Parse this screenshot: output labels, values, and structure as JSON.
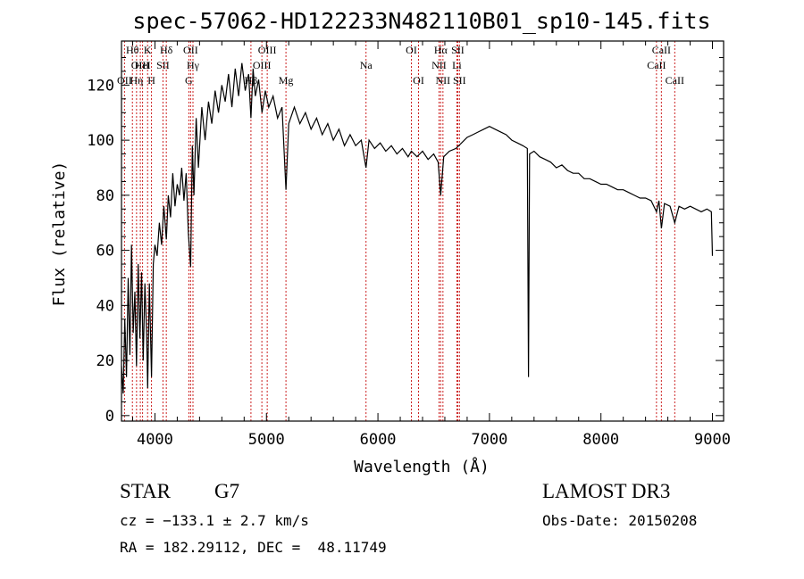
{
  "header": {
    "title": "spec-57062-HD122233N482110B01_sp10-145.fits"
  },
  "info": {
    "object_class": "STAR",
    "subclass": "G7",
    "survey": "LAMOST DR3",
    "cz": "cz = −133.1 ± 2.7 km/s",
    "obs_date": "Obs-Date: 20150208",
    "coords": "RA = 182.29112, DEC =  48.11749"
  },
  "chart_data": {
    "type": "line",
    "title": "spec-57062-HD122233N482110B01_sp10-145.fits",
    "xlabel": "Wavelength (Å)",
    "ylabel": "Flux (relative)",
    "xlim": [
      3700,
      9100
    ],
    "ylim": [
      -2,
      136
    ],
    "xticks": [
      4000,
      5000,
      6000,
      7000,
      8000,
      9000
    ],
    "yticks": [
      0,
      20,
      40,
      60,
      80,
      100,
      120
    ],
    "grid": false,
    "colors": {
      "spectrum": "#000000",
      "line_markers": "#cc2222"
    },
    "spectral_lines": [
      {
        "label": "OII",
        "x": 3727,
        "row": 2
      },
      {
        "label": "Hθ",
        "x": 3798,
        "row": 0
      },
      {
        "label": "OIII",
        "x": 3869,
        "row": 1
      },
      {
        "label": "Hη",
        "x": 3835,
        "row": 2
      },
      {
        "label": "K",
        "x": 3934,
        "row": 0
      },
      {
        "label": "HeI",
        "x": 3889,
        "row": 1
      },
      {
        "label": "H",
        "x": 3969,
        "row": 2
      },
      {
        "label": "Hδ",
        "x": 4102,
        "row": 0
      },
      {
        "label": "SII",
        "x": 4072,
        "row": 1
      },
      {
        "label": "OII",
        "x": 4320,
        "row": 0
      },
      {
        "label": "Hγ",
        "x": 4341,
        "row": 1
      },
      {
        "label": "G",
        "x": 4304,
        "row": 2
      },
      {
        "label": "Hβ",
        "x": 4861,
        "row": 2
      },
      {
        "label": "OIII",
        "x": 4959,
        "row": 1
      },
      {
        "label": "OIII",
        "x": 5007,
        "row": 0
      },
      {
        "label": "Mg",
        "x": 5175,
        "row": 2
      },
      {
        "label": "Na",
        "x": 5893,
        "row": 1
      },
      {
        "label": "OI",
        "x": 6300,
        "row": 0
      },
      {
        "label": "OI",
        "x": 6364,
        "row": 2
      },
      {
        "label": "Hα",
        "x": 6563,
        "row": 0
      },
      {
        "label": "NII",
        "x": 6548,
        "row": 1
      },
      {
        "label": "NII",
        "x": 6583,
        "row": 2
      },
      {
        "label": "SII",
        "x": 6716,
        "row": 0
      },
      {
        "label": "Li",
        "x": 6708,
        "row": 1
      },
      {
        "label": "SII",
        "x": 6731,
        "row": 2
      },
      {
        "label": "CaII",
        "x": 8542,
        "row": 0
      },
      {
        "label": "CaII",
        "x": 8498,
        "row": 1
      },
      {
        "label": "CaII",
        "x": 8662,
        "row": 2
      }
    ],
    "series": [
      {
        "values_xy": [
          [
            3700,
            18
          ],
          [
            3715,
            8
          ],
          [
            3730,
            35
          ],
          [
            3745,
            14
          ],
          [
            3760,
            50
          ],
          [
            3775,
            22
          ],
          [
            3790,
            62
          ],
          [
            3805,
            30
          ],
          [
            3820,
            45
          ],
          [
            3835,
            18
          ],
          [
            3850,
            55
          ],
          [
            3865,
            28
          ],
          [
            3880,
            52
          ],
          [
            3895,
            20
          ],
          [
            3910,
            48
          ],
          [
            3925,
            30
          ],
          [
            3935,
            10
          ],
          [
            3950,
            48
          ],
          [
            3969,
            14
          ],
          [
            3985,
            55
          ],
          [
            4000,
            62
          ],
          [
            4020,
            58
          ],
          [
            4040,
            70
          ],
          [
            4060,
            62
          ],
          [
            4080,
            76
          ],
          [
            4102,
            64
          ],
          [
            4120,
            80
          ],
          [
            4140,
            72
          ],
          [
            4160,
            88
          ],
          [
            4180,
            76
          ],
          [
            4200,
            84
          ],
          [
            4220,
            80
          ],
          [
            4240,
            90
          ],
          [
            4260,
            78
          ],
          [
            4280,
            88
          ],
          [
            4300,
            66
          ],
          [
            4320,
            54
          ],
          [
            4335,
            98
          ],
          [
            4350,
            80
          ],
          [
            4370,
            108
          ],
          [
            4390,
            90
          ],
          [
            4420,
            112
          ],
          [
            4450,
            100
          ],
          [
            4480,
            114
          ],
          [
            4510,
            106
          ],
          [
            4540,
            118
          ],
          [
            4570,
            110
          ],
          [
            4600,
            120
          ],
          [
            4630,
            114
          ],
          [
            4660,
            124
          ],
          [
            4690,
            112
          ],
          [
            4720,
            126
          ],
          [
            4750,
            116
          ],
          [
            4780,
            128
          ],
          [
            4810,
            118
          ],
          [
            4840,
            124
          ],
          [
            4861,
            108
          ],
          [
            4880,
            126
          ],
          [
            4900,
            116
          ],
          [
            4930,
            122
          ],
          [
            4960,
            110
          ],
          [
            4990,
            118
          ],
          [
            5020,
            112
          ],
          [
            5060,
            116
          ],
          [
            5100,
            108
          ],
          [
            5140,
            112
          ],
          [
            5175,
            82
          ],
          [
            5200,
            106
          ],
          [
            5250,
            112
          ],
          [
            5300,
            106
          ],
          [
            5350,
            110
          ],
          [
            5400,
            104
          ],
          [
            5450,
            108
          ],
          [
            5500,
            102
          ],
          [
            5550,
            106
          ],
          [
            5600,
            100
          ],
          [
            5650,
            104
          ],
          [
            5700,
            98
          ],
          [
            5750,
            102
          ],
          [
            5800,
            98
          ],
          [
            5850,
            100
          ],
          [
            5893,
            90
          ],
          [
            5920,
            100
          ],
          [
            5970,
            97
          ],
          [
            6020,
            99
          ],
          [
            6070,
            96
          ],
          [
            6120,
            98
          ],
          [
            6170,
            95
          ],
          [
            6220,
            97
          ],
          [
            6270,
            94
          ],
          [
            6300,
            96
          ],
          [
            6350,
            94
          ],
          [
            6400,
            96
          ],
          [
            6450,
            93
          ],
          [
            6500,
            95
          ],
          [
            6540,
            92
          ],
          [
            6563,
            80
          ],
          [
            6590,
            94
          ],
          [
            6640,
            96
          ],
          [
            6700,
            97
          ],
          [
            6750,
            99
          ],
          [
            6800,
            101
          ],
          [
            6850,
            102
          ],
          [
            6900,
            103
          ],
          [
            6950,
            104
          ],
          [
            7000,
            105
          ],
          [
            7050,
            104
          ],
          [
            7100,
            103
          ],
          [
            7150,
            102
          ],
          [
            7200,
            100
          ],
          [
            7250,
            99
          ],
          [
            7300,
            98
          ],
          [
            7340,
            97
          ],
          [
            7350,
            14
          ],
          [
            7360,
            95
          ],
          [
            7400,
            96
          ],
          [
            7450,
            94
          ],
          [
            7500,
            93
          ],
          [
            7550,
            92
          ],
          [
            7600,
            90
          ],
          [
            7650,
            91
          ],
          [
            7700,
            89
          ],
          [
            7750,
            88
          ],
          [
            7800,
            88
          ],
          [
            7850,
            86
          ],
          [
            7900,
            86
          ],
          [
            7950,
            85
          ],
          [
            8000,
            84
          ],
          [
            8050,
            84
          ],
          [
            8100,
            83
          ],
          [
            8150,
            82
          ],
          [
            8200,
            82
          ],
          [
            8250,
            81
          ],
          [
            8300,
            80
          ],
          [
            8350,
            79
          ],
          [
            8400,
            79
          ],
          [
            8450,
            78
          ],
          [
            8498,
            74
          ],
          [
            8520,
            78
          ],
          [
            8542,
            68
          ],
          [
            8570,
            77
          ],
          [
            8620,
            76
          ],
          [
            8662,
            70
          ],
          [
            8700,
            76
          ],
          [
            8750,
            75
          ],
          [
            8800,
            76
          ],
          [
            8850,
            75
          ],
          [
            8900,
            74
          ],
          [
            8950,
            75
          ],
          [
            8990,
            74
          ],
          [
            9000,
            58
          ]
        ]
      }
    ]
  }
}
